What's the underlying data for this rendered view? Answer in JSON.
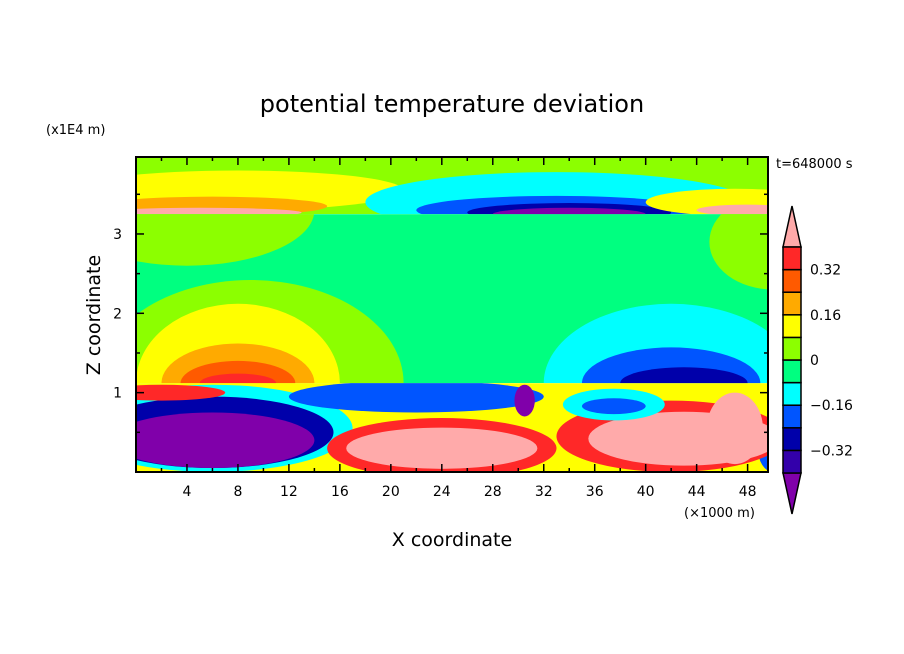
{
  "chart_data": {
    "type": "heatmap",
    "title": "potential temperature deviation",
    "xlabel": "X coordinate",
    "ylabel": "Z coordinate",
    "x_unit": "(×1000 m)",
    "y_unit": "(x1E4 m)",
    "time_label": "t=648000 s",
    "xlim": [
      0,
      49.6
    ],
    "ylim": [
      0,
      3.97
    ],
    "x_ticks": [
      4,
      8,
      12,
      16,
      20,
      24,
      28,
      32,
      36,
      40,
      44,
      48
    ],
    "y_ticks": [
      1,
      2,
      3
    ],
    "colorbar": {
      "levels": [
        -0.4,
        -0.32,
        -0.24,
        -0.16,
        -0.08,
        0,
        0.08,
        0.16,
        0.24,
        0.32,
        0.4
      ],
      "tick_labels": [
        "0.32",
        "0.16",
        "0",
        "−0.16",
        "−0.32"
      ],
      "tick_values": [
        0.32,
        0.16,
        0,
        -0.16,
        -0.32
      ],
      "colors": [
        "#8000aa",
        "#3300aa",
        "#0000aa",
        "#0055ff",
        "#00ffff",
        "#00ff80",
        "#8cff00",
        "#ffff00",
        "#ffaa00",
        "#ff5a00",
        "#ff2828",
        "#ffaaaa"
      ],
      "extend": "both"
    },
    "layers": [
      {
        "z": [
          3.25,
          3.97
        ],
        "base": 0.04
      },
      {
        "z": [
          1.12,
          3.25
        ],
        "base": -0.04
      },
      {
        "z": [
          0,
          1.12
        ],
        "base": 0.12
      }
    ],
    "regions": [
      {
        "layer": 0,
        "cx": 8,
        "cz": 3.55,
        "rx": 13,
        "rz": 0.25,
        "v": 0.12
      },
      {
        "layer": 0,
        "cx": 6,
        "cz": 3.35,
        "rx": 9,
        "rz": 0.12,
        "v": 0.2
      },
      {
        "layer": 0,
        "cx": 5,
        "cz": 3.27,
        "rx": 8,
        "rz": 0.06,
        "v": 0.44
      },
      {
        "layer": 0,
        "cx": 33,
        "cz": 3.4,
        "rx": 15,
        "rz": 0.38,
        "v": -0.12
      },
      {
        "layer": 0,
        "cx": 33,
        "cz": 3.3,
        "rx": 11,
        "rz": 0.18,
        "v": -0.2
      },
      {
        "layer": 0,
        "cx": 34,
        "cz": 3.27,
        "rx": 8,
        "rz": 0.12,
        "v": -0.28
      },
      {
        "layer": 0,
        "cx": 34,
        "cz": 3.25,
        "rx": 6,
        "rz": 0.08,
        "v": -0.44
      },
      {
        "layer": 0,
        "cx": 47,
        "cz": 3.4,
        "rx": 7,
        "rz": 0.17,
        "v": 0.12
      },
      {
        "layer": 0,
        "cx": 48,
        "cz": 3.3,
        "rx": 4,
        "rz": 0.07,
        "v": 0.44
      },
      {
        "layer": 1,
        "cx": 4,
        "cz": 3.3,
        "rx": 10,
        "rz": 0.7,
        "v": 0.04
      },
      {
        "layer": 1,
        "cx": 50,
        "cz": 2.9,
        "rx": 5,
        "rz": 0.6,
        "v": 0.04
      },
      {
        "layer": 1,
        "cx": 9,
        "cz": 1.12,
        "rx": 12,
        "rz": 1.3,
        "v": 0.04
      },
      {
        "layer": 1,
        "cx": 8,
        "cz": 1.12,
        "rx": 8,
        "rz": 1.0,
        "v": 0.12
      },
      {
        "layer": 1,
        "cx": 8,
        "cz": 1.12,
        "rx": 6,
        "rz": 0.5,
        "v": 0.2
      },
      {
        "layer": 1,
        "cx": 8,
        "cz": 1.12,
        "rx": 4.5,
        "rz": 0.28,
        "v": 0.28
      },
      {
        "layer": 1,
        "cx": 8,
        "cz": 1.12,
        "rx": 3,
        "rz": 0.12,
        "v": 0.36
      },
      {
        "layer": 1,
        "cx": 42,
        "cz": 1.12,
        "rx": 10,
        "rz": 1.0,
        "v": -0.12
      },
      {
        "layer": 1,
        "cx": 42,
        "cz": 1.12,
        "rx": 7,
        "rz": 0.45,
        "v": -0.2
      },
      {
        "layer": 1,
        "cx": 43,
        "cz": 1.12,
        "rx": 5,
        "rz": 0.2,
        "v": -0.28
      },
      {
        "layer": 2,
        "cx": 6,
        "cz": 0.55,
        "rx": 11,
        "rz": 0.55,
        "v": -0.12
      },
      {
        "layer": 2,
        "cx": 6,
        "cz": 0.5,
        "rx": 9.5,
        "rz": 0.45,
        "v": -0.28
      },
      {
        "layer": 2,
        "cx": 6,
        "cz": 0.4,
        "rx": 8,
        "rz": 0.35,
        "v": -0.44
      },
      {
        "layer": 2,
        "cx": 50,
        "cz": 0.3,
        "rx": 1.2,
        "rz": 0.3,
        "v": -0.2
      },
      {
        "layer": 2,
        "cx": 24,
        "cz": 0.3,
        "rx": 9,
        "rz": 0.38,
        "v": 0.36
      },
      {
        "layer": 2,
        "cx": 24,
        "cz": 0.3,
        "rx": 7.5,
        "rz": 0.26,
        "v": 0.44
      },
      {
        "layer": 2,
        "cx": 42,
        "cz": 0.45,
        "rx": 9,
        "rz": 0.45,
        "v": 0.36
      },
      {
        "layer": 2,
        "cx": 43,
        "cz": 0.42,
        "rx": 7.5,
        "rz": 0.34,
        "v": 0.44
      },
      {
        "layer": 2,
        "cx": 47,
        "cz": 0.55,
        "rx": 2.2,
        "rz": 0.45,
        "v": 0.44
      },
      {
        "layer": 2,
        "cx": 37.5,
        "cz": 0.85,
        "rx": 4,
        "rz": 0.2,
        "v": -0.12
      },
      {
        "layer": 2,
        "cx": 37.5,
        "cz": 0.83,
        "rx": 2.5,
        "rz": 0.1,
        "v": -0.2
      },
      {
        "layer": 2,
        "cx": 22,
        "cz": 0.95,
        "rx": 10,
        "rz": 0.2,
        "v": -0.2
      },
      {
        "layer": 2,
        "cx": 30.5,
        "cz": 0.9,
        "rx": 0.8,
        "rz": 0.2,
        "v": -0.44
      },
      {
        "layer": 2,
        "cx": 2,
        "cz": 1.0,
        "rx": 5,
        "rz": 0.1,
        "v": 0.36
      }
    ]
  }
}
